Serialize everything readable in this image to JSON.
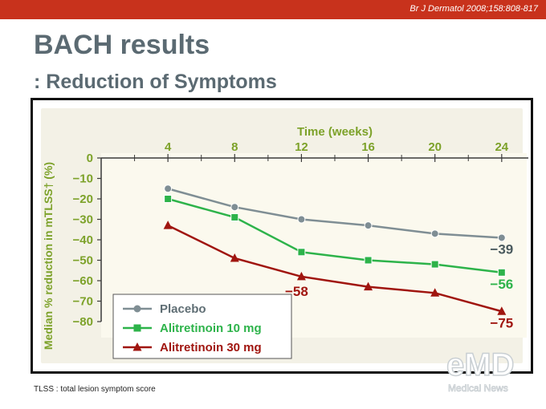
{
  "header": {
    "citation": "Br J Dermatol 2008;158:808-817"
  },
  "title": "BACH results",
  "subtitle": ": Reduction of Symptoms",
  "footnote": "TLSS : total lesion symptom score",
  "colors": {
    "topbar": "#c8321c",
    "title": "#5b6a72",
    "placebo": "#7f8e94",
    "alitretinoin_10": "#2db34a",
    "alitretinoin_30": "#a0150f",
    "axis_text": "#7da22a"
  },
  "chart_data": {
    "type": "line",
    "title": "",
    "xlabel": "Time (weeks)",
    "ylabel": "Median % reduction in mTLSS† (%)",
    "x": [
      0,
      4,
      8,
      12,
      16,
      20,
      24
    ],
    "x_tick_labels": [
      "4",
      "8",
      "12",
      "16",
      "20",
      "24"
    ],
    "x_ticks": [
      4,
      8,
      12,
      16,
      20,
      24
    ],
    "y_ticks": [
      0,
      -10,
      -20,
      -30,
      -40,
      -50,
      -60,
      -70,
      -80
    ],
    "y_tick_labels": [
      "0",
      "−10",
      "−20",
      "−30",
      "−40",
      "−50",
      "−60",
      "−70",
      "−80"
    ],
    "xlim": [
      0,
      25.5
    ],
    "ylim": [
      -80,
      0
    ],
    "x_axis_position": "top",
    "grid": false,
    "legend_position": "bottom-left",
    "series": [
      {
        "name": "Placebo",
        "color": "#7f8e94",
        "marker": "circle",
        "x": [
          4,
          8,
          12,
          16,
          20,
          24
        ],
        "values": [
          -15,
          -24,
          -30,
          -33,
          -37,
          -39
        ]
      },
      {
        "name": "Alitretinoin 10 mg",
        "color": "#2db34a",
        "marker": "square",
        "x": [
          4,
          8,
          12,
          16,
          20,
          24
        ],
        "values": [
          -20,
          -29,
          -46,
          -50,
          -52,
          -56
        ]
      },
      {
        "name": "Alitretinoin 30 mg",
        "color": "#a0150f",
        "marker": "triangle",
        "x": [
          4,
          8,
          12,
          16,
          20,
          24
        ],
        "values": [
          -33,
          -49,
          -58,
          -63,
          -66,
          -75
        ]
      }
    ],
    "annotations": [
      {
        "text": "−39",
        "x": 24,
        "y": -39,
        "color": "#4a5a5e"
      },
      {
        "text": "−56",
        "x": 24,
        "y": -56,
        "color": "#2db34a"
      },
      {
        "text": "−58",
        "x": 12,
        "y": -58,
        "color": "#a0150f"
      },
      {
        "text": "−75",
        "x": 24,
        "y": -75,
        "color": "#a0150f"
      }
    ]
  },
  "watermark": {
    "logo_text": "eMD",
    "caption": "Medical News"
  }
}
